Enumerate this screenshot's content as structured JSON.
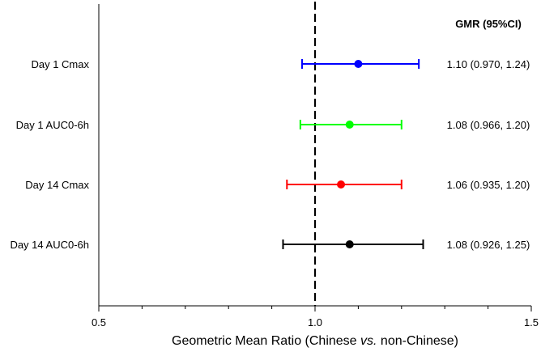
{
  "chart_data": {
    "type": "forest",
    "title": "",
    "xlabel": {
      "prefix": "Geometric Mean Ratio (Chinese ",
      "italic": "vs.",
      "suffix": " non-Chinese)"
    },
    "xlim": [
      0.5,
      1.5
    ],
    "x_ticks": [
      0.5,
      1.0,
      1.5
    ],
    "x_tick_labels": [
      "0.5",
      "1.0",
      "1.5"
    ],
    "x_minor_ticks": [
      0.6,
      0.7,
      0.8,
      0.9,
      1.1,
      1.2,
      1.3,
      1.4
    ],
    "reference_line": 1.0,
    "column_header": "GMR (95%CI)",
    "grid": false,
    "rows": [
      {
        "label": "Day 1 Cmax",
        "gmr": 1.1,
        "lower": 0.97,
        "upper": 1.24,
        "text": "1.10 (0.970, 1.24)",
        "color": "#0000ff"
      },
      {
        "label": "Day 1 AUC0-6h",
        "gmr": 1.08,
        "lower": 0.966,
        "upper": 1.2,
        "text": "1.08 (0.966, 1.20)",
        "color": "#00ff00"
      },
      {
        "label": "Day 14 Cmax",
        "gmr": 1.06,
        "lower": 0.935,
        "upper": 1.2,
        "text": "1.06 (0.935, 1.20)",
        "color": "#ff0000"
      },
      {
        "label": "Day 14 AUC0-6h",
        "gmr": 1.08,
        "lower": 0.926,
        "upper": 1.25,
        "text": "1.08 (0.926, 1.25)",
        "color": "#000000"
      }
    ]
  }
}
